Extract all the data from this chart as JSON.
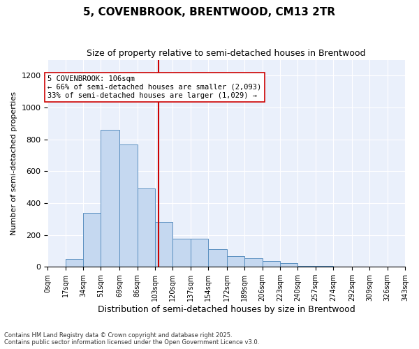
{
  "title": "5, COVENBROOK, BRENTWOOD, CM13 2TR",
  "subtitle": "Size of property relative to semi-detached houses in Brentwood",
  "xlabel": "Distribution of semi-detached houses by size in Brentwood",
  "ylabel": "Number of semi-detached properties",
  "property_size": 106,
  "property_label": "5 COVENBROOK: 106sqm",
  "pct_smaller": 66,
  "pct_larger": 33,
  "count_smaller": 2093,
  "count_larger": 1029,
  "annotation_line1": "5 COVENBROOK: 106sqm",
  "annotation_line2": "← 66% of semi-detached houses are smaller (2,093)",
  "annotation_line3": "33% of semi-detached houses are larger (1,029) →",
  "bin_edges": [
    0,
    17,
    34,
    51,
    69,
    86,
    103,
    120,
    137,
    154,
    172,
    189,
    206,
    223,
    240,
    257,
    274,
    292,
    309,
    326,
    343
  ],
  "bin_labels": [
    "0sqm",
    "17sqm",
    "34sqm",
    "51sqm",
    "69sqm",
    "86sqm",
    "103sqm",
    "120sqm",
    "137sqm",
    "154sqm",
    "172sqm",
    "189sqm",
    "206sqm",
    "223sqm",
    "240sqm",
    "257sqm",
    "274sqm",
    "292sqm",
    "309sqm",
    "326sqm",
    "343sqm"
  ],
  "bar_heights": [
    2,
    50,
    340,
    860,
    770,
    490,
    280,
    175,
    175,
    110,
    65,
    55,
    35,
    25,
    5,
    5,
    3,
    0,
    2,
    0
  ],
  "bar_color": "#c5d8f0",
  "bar_edge_color": "#5a8fc0",
  "vline_color": "#cc0000",
  "vline_x": 106,
  "annotation_box_color": "#ffffff",
  "annotation_box_edge": "#cc0000",
  "ylim": [
    0,
    1300
  ],
  "yticks": [
    0,
    200,
    400,
    600,
    800,
    1000,
    1200
  ],
  "bg_color": "#eaf0fb",
  "footer_line1": "Contains HM Land Registry data © Crown copyright and database right 2025.",
  "footer_line2": "Contains public sector information licensed under the Open Government Licence v3.0."
}
